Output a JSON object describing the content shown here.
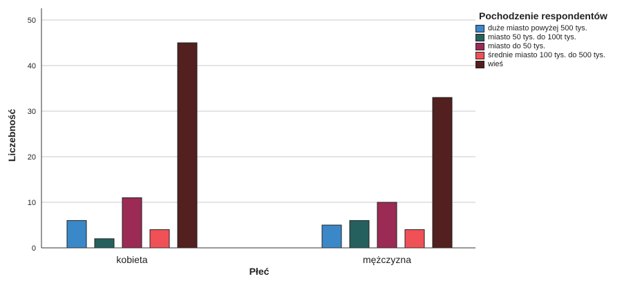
{
  "chart_data": {
    "type": "bar",
    "xlabel": "Płeć",
    "ylabel": "Liczebność",
    "ylim": [
      0,
      50
    ],
    "yticks": [
      "0",
      "10",
      "20",
      "30",
      "40",
      "50"
    ],
    "grid": true,
    "legend_placement": "right",
    "legend_title": "Pochodzenie respondentów",
    "categories": [
      "kobieta",
      "mężczyzna"
    ],
    "series": [
      {
        "name": "duże miasto powyżej 500 tys.",
        "color": "#3b88c9",
        "values": [
          6,
          5
        ]
      },
      {
        "name": "miasto 50 tys. do 100t tys.",
        "color": "#25605e",
        "values": [
          2,
          6
        ]
      },
      {
        "name": "miasto do 50 tys.",
        "color": "#9b2b55",
        "values": [
          11,
          10
        ]
      },
      {
        "name": "średnie miasto 100 tys. do 500 tys.",
        "color": "#ef5156",
        "values": [
          4,
          4
        ]
      },
      {
        "name": "wieś",
        "color": "#531f1f",
        "values": [
          45,
          33
        ]
      }
    ]
  }
}
